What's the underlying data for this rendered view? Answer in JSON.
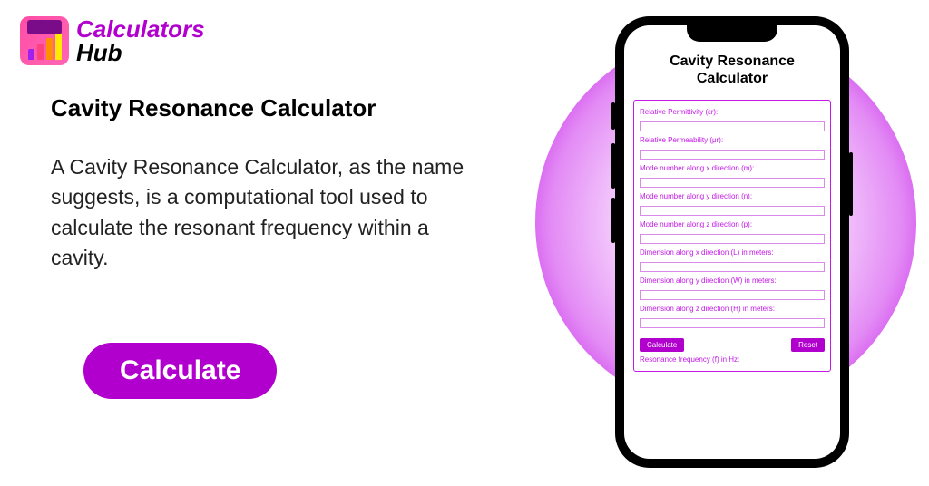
{
  "logo": {
    "line1": "Calculators",
    "line2": "Hub"
  },
  "heading": "Cavity Resonance Calculator",
  "description": "A Cavity Resonance Calculator, as the name suggests, is a computational tool used to calculate the resonant frequency within a cavity.",
  "cta_label": "Calculate",
  "phone": {
    "title_line1": "Cavity Resonance",
    "title_line2": "Calculator",
    "fields": [
      "Relative Permittivity (εr):",
      "Relative Permeability (μr):",
      "Mode number along x direction (m):",
      "Mode number along y direction (n):",
      "Mode number along z direction (p):",
      "Dimension along x direction (L) in meters:",
      "Dimension along y direction (W) in meters:",
      "Dimension along z direction (H) in meters:"
    ],
    "calculate_label": "Calculate",
    "reset_label": "Reset",
    "result_label": "Resonance frequency (f) in Hz:"
  },
  "colors": {
    "brand_purple": "#b100cd",
    "accent_magenta": "#c41ae6",
    "text_black": "#000000",
    "background": "#ffffff"
  }
}
